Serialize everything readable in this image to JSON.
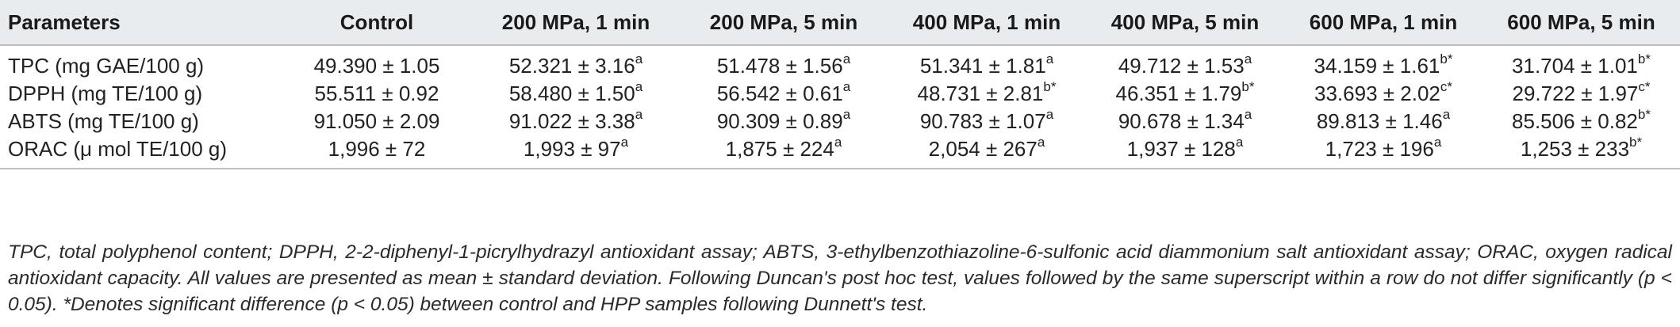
{
  "table": {
    "headers": [
      "Parameters",
      "Control",
      "200 MPa, 1 min",
      "200 MPa, 5 min",
      "400 MPa, 1 min",
      "400 MPa, 5 min",
      "600 MPa, 1 min",
      "600 MPa, 5 min"
    ],
    "rows": [
      {
        "parameter": "TPC (mg GAE/100 g)",
        "cells": [
          {
            "value": "49.390 ± 1.05",
            "sup": ""
          },
          {
            "value": "52.321 ± 3.16",
            "sup": "a"
          },
          {
            "value": "51.478 ± 1.56",
            "sup": "a"
          },
          {
            "value": "51.341 ± 1.81",
            "sup": "a"
          },
          {
            "value": "49.712 ± 1.53",
            "sup": "a"
          },
          {
            "value": "34.159 ± 1.61",
            "sup": "b*"
          },
          {
            "value": "31.704 ± 1.01",
            "sup": "b*"
          }
        ]
      },
      {
        "parameter": "DPPH (mg TE/100 g)",
        "cells": [
          {
            "value": "55.511 ± 0.92",
            "sup": ""
          },
          {
            "value": "58.480 ± 1.50",
            "sup": "a"
          },
          {
            "value": "56.542 ± 0.61",
            "sup": "a"
          },
          {
            "value": "48.731 ± 2.81",
            "sup": "b*"
          },
          {
            "value": "46.351 ± 1.79",
            "sup": "b*"
          },
          {
            "value": "33.693 ± 2.02",
            "sup": "c*"
          },
          {
            "value": "29.722 ± 1.97",
            "sup": "c*"
          }
        ]
      },
      {
        "parameter": "ABTS (mg TE/100 g)",
        "cells": [
          {
            "value": "91.050 ± 2.09",
            "sup": ""
          },
          {
            "value": "91.022 ± 3.38",
            "sup": "a"
          },
          {
            "value": "90.309 ± 0.89",
            "sup": "a"
          },
          {
            "value": "90.783 ± 1.07",
            "sup": "a"
          },
          {
            "value": "90.678 ± 1.34",
            "sup": "a"
          },
          {
            "value": "89.813 ± 1.46",
            "sup": "a"
          },
          {
            "value": "85.506 ± 0.82",
            "sup": "b*"
          }
        ]
      },
      {
        "parameter": "ORAC (μ mol TE/100 g)",
        "cells": [
          {
            "value": "1,996 ± 72",
            "sup": ""
          },
          {
            "value": "1,993 ± 97",
            "sup": "a"
          },
          {
            "value": "1,875 ± 224",
            "sup": "a"
          },
          {
            "value": "2,054 ± 267",
            "sup": "a"
          },
          {
            "value": "1,937 ± 128",
            "sup": "a"
          },
          {
            "value": "1,723 ± 196",
            "sup": "a"
          },
          {
            "value": "1,253 ± 233",
            "sup": "b*"
          }
        ]
      }
    ]
  },
  "footnote": "TPC, total polyphenol content; DPPH, 2-2-diphenyl-1-picrylhydrazyl antioxidant assay; ABTS, 3-ethylbenzothiazoline-6-sulfonic acid diammonium salt antioxidant assay; ORAC, oxygen radical antioxidant capacity. All values are presented as mean ± standard deviation. Following Duncan's post hoc test, values followed by the same superscript within a row do not differ significantly (p < 0.05). *Denotes significant difference (p < 0.05) between control and HPP samples following Dunnett's test."
}
